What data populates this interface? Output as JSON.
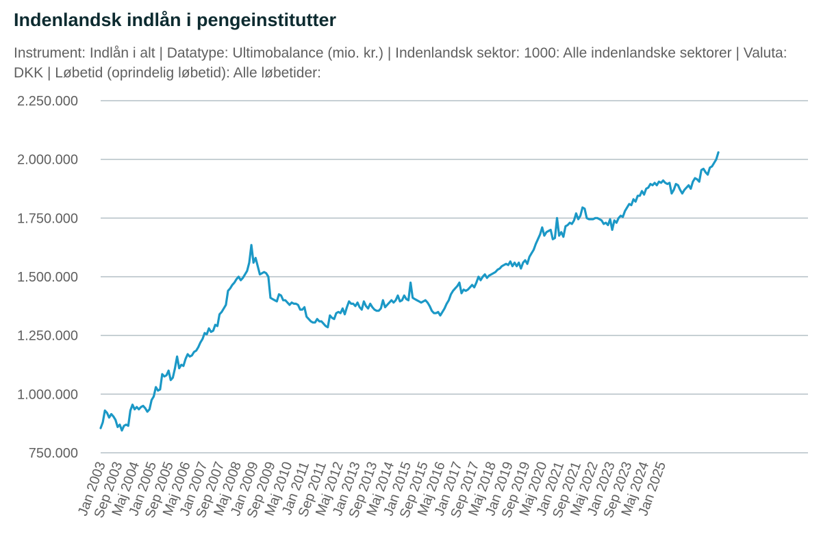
{
  "chart_data": {
    "type": "line",
    "title": "Indenlandsk indlån i pengeinstitutter",
    "subtitle": "Instrument: Indlån i alt | Datatype: Ultimobalance (mio. kr.) | Indenlandsk sektor: 1000: Alle indenlandske sektorer | Valuta: DKK | Løbetid (oprindelig løbetid): Alle løbetider:",
    "xlabel": "",
    "ylabel": "",
    "ylim": [
      750000,
      2250000
    ],
    "y_ticks": [
      "750.000",
      "1.000.000",
      "1.250.000",
      "1.500.000",
      "1.750.000",
      "2.000.000",
      "2.250.000"
    ],
    "y_tick_values": [
      750000,
      1000000,
      1250000,
      1500000,
      1750000,
      2000000,
      2250000
    ],
    "x_ticks": [
      "Jan 2003",
      "Sep 2003",
      "Maj 2004",
      "Jan 2005",
      "Sep 2005",
      "Maj 2006",
      "Jan 2007",
      "Sep 2007",
      "Maj 2008",
      "Jan 2009",
      "Sep 2009",
      "Maj 2010",
      "Jan 2011",
      "Sep 2011",
      "Maj 2012",
      "Jan 2013",
      "Sep 2013",
      "Maj 2014",
      "Jan 2015",
      "Sep 2015",
      "Maj 2016",
      "Jan 2017",
      "Sep 2017",
      "Maj 2018",
      "Jan 2019",
      "Sep 2019",
      "Maj 2020",
      "Jan 2021",
      "Sep 2021",
      "Maj 2022",
      "Jan 2023",
      "Sep 2023",
      "Maj 2024",
      "Jan 2025"
    ],
    "grid": true,
    "series": [
      {
        "color": "#1b98c6",
        "x_start": "Jan 2003",
        "frequency": "monthly",
        "values": [
          855000,
          880000,
          930000,
          920000,
          900000,
          915000,
          905000,
          890000,
          860000,
          870000,
          845000,
          865000,
          870000,
          865000,
          930000,
          955000,
          935000,
          945000,
          935000,
          945000,
          950000,
          940000,
          925000,
          935000,
          975000,
          990000,
          1030000,
          1015000,
          1020000,
          1085000,
          1075000,
          1080000,
          1100000,
          1060000,
          1070000,
          1110000,
          1160000,
          1110000,
          1125000,
          1120000,
          1150000,
          1170000,
          1160000,
          1165000,
          1180000,
          1185000,
          1200000,
          1220000,
          1235000,
          1260000,
          1255000,
          1280000,
          1265000,
          1270000,
          1295000,
          1290000,
          1340000,
          1350000,
          1365000,
          1380000,
          1440000,
          1450000,
          1465000,
          1475000,
          1490000,
          1500000,
          1485000,
          1495000,
          1510000,
          1525000,
          1560000,
          1635000,
          1560000,
          1580000,
          1545000,
          1510000,
          1515000,
          1520000,
          1515000,
          1500000,
          1410000,
          1405000,
          1400000,
          1395000,
          1425000,
          1420000,
          1400000,
          1400000,
          1390000,
          1380000,
          1390000,
          1385000,
          1385000,
          1380000,
          1360000,
          1360000,
          1370000,
          1330000,
          1320000,
          1310000,
          1305000,
          1305000,
          1320000,
          1310000,
          1310000,
          1300000,
          1290000,
          1285000,
          1335000,
          1325000,
          1320000,
          1345000,
          1350000,
          1345000,
          1365000,
          1340000,
          1370000,
          1395000,
          1385000,
          1385000,
          1375000,
          1390000,
          1370000,
          1360000,
          1395000,
          1375000,
          1365000,
          1385000,
          1370000,
          1360000,
          1355000,
          1355000,
          1365000,
          1400000,
          1370000,
          1380000,
          1390000,
          1400000,
          1390000,
          1400000,
          1420000,
          1395000,
          1400000,
          1420000,
          1405000,
          1400000,
          1475000,
          1410000,
          1405000,
          1400000,
          1395000,
          1390000,
          1395000,
          1400000,
          1390000,
          1375000,
          1355000,
          1345000,
          1345000,
          1350000,
          1335000,
          1350000,
          1365000,
          1385000,
          1400000,
          1425000,
          1440000,
          1450000,
          1460000,
          1475000,
          1430000,
          1445000,
          1440000,
          1445000,
          1455000,
          1465000,
          1455000,
          1475000,
          1500000,
          1485000,
          1500000,
          1510000,
          1495000,
          1505000,
          1510000,
          1515000,
          1520000,
          1530000,
          1535000,
          1545000,
          1550000,
          1555000,
          1550000,
          1565000,
          1545000,
          1560000,
          1545000,
          1560000,
          1535000,
          1560000,
          1570000,
          1555000,
          1585000,
          1600000,
          1615000,
          1640000,
          1660000,
          1680000,
          1710000,
          1675000,
          1690000,
          1695000,
          1700000,
          1660000,
          1665000,
          1750000,
          1675000,
          1690000,
          1670000,
          1715000,
          1720000,
          1730000,
          1725000,
          1740000,
          1770000,
          1745000,
          1760000,
          1795000,
          1790000,
          1750000,
          1745000,
          1745000,
          1745000,
          1750000,
          1750000,
          1745000,
          1740000,
          1725000,
          1730000,
          1720000,
          1745000,
          1700000,
          1740000,
          1730000,
          1750000,
          1760000,
          1755000,
          1780000,
          1795000,
          1810000,
          1805000,
          1830000,
          1820000,
          1845000,
          1845000,
          1865000,
          1850000,
          1875000,
          1880000,
          1895000,
          1890000,
          1900000,
          1890000,
          1905000,
          1900000,
          1910000,
          1900000,
          1895000,
          1900000,
          1855000,
          1870000,
          1895000,
          1890000,
          1870000,
          1855000,
          1870000,
          1880000,
          1890000,
          1875000,
          1905000,
          1920000,
          1915000,
          1905000,
          1955000,
          1960000,
          1945000,
          1935000,
          1965000,
          1970000,
          1985000,
          2000000,
          2030000
        ]
      }
    ]
  }
}
